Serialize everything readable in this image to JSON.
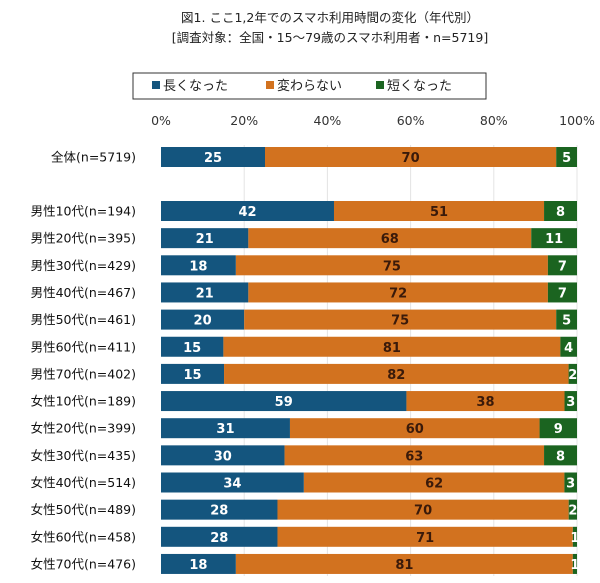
{
  "chart_data": {
    "type": "bar",
    "orientation": "horizontal",
    "stacked": true,
    "title": "図1. ここ1,2年でのスマホ利用時間の変化（年代別）",
    "subtitle": "[調査対象：全国・15～79歳のスマホ利用者・n=5719]",
    "xlim": [
      0,
      100
    ],
    "xticks": [
      "0%",
      "20%",
      "40%",
      "60%",
      "80%",
      "100%"
    ],
    "grid": true,
    "legend_position": "top",
    "categories": [
      "全体(n=5719)",
      "男性10代(n=194)",
      "男性20代(n=395)",
      "男性30代(n=429)",
      "男性40代(n=467)",
      "男性50代(n=461)",
      "男性60代(n=411)",
      "男性70代(n=402)",
      "女性10代(n=189)",
      "女性20代(n=399)",
      "女性30代(n=435)",
      "女性40代(n=514)",
      "女性50代(n=489)",
      "女性60代(n=458)",
      "女性70代(n=476)"
    ],
    "series": [
      {
        "name": "長くなった",
        "color": "#14557e",
        "values": [
          25,
          42,
          21,
          18,
          21,
          20,
          15,
          15,
          59,
          31,
          30,
          34,
          28,
          28,
          18
        ]
      },
      {
        "name": "変わらない",
        "color": "#d2721f",
        "values": [
          70,
          51,
          68,
          75,
          72,
          75,
          81,
          82,
          38,
          60,
          63,
          62,
          70,
          71,
          81
        ]
      },
      {
        "name": "短くなった",
        "color": "#1b6420",
        "values": [
          5,
          8,
          11,
          7,
          7,
          5,
          4,
          2,
          3,
          9,
          8,
          3,
          2,
          1,
          1
        ]
      }
    ],
    "label_colors": [
      "#ffffff",
      "#3a1a0a",
      "#ffffff"
    ]
  }
}
